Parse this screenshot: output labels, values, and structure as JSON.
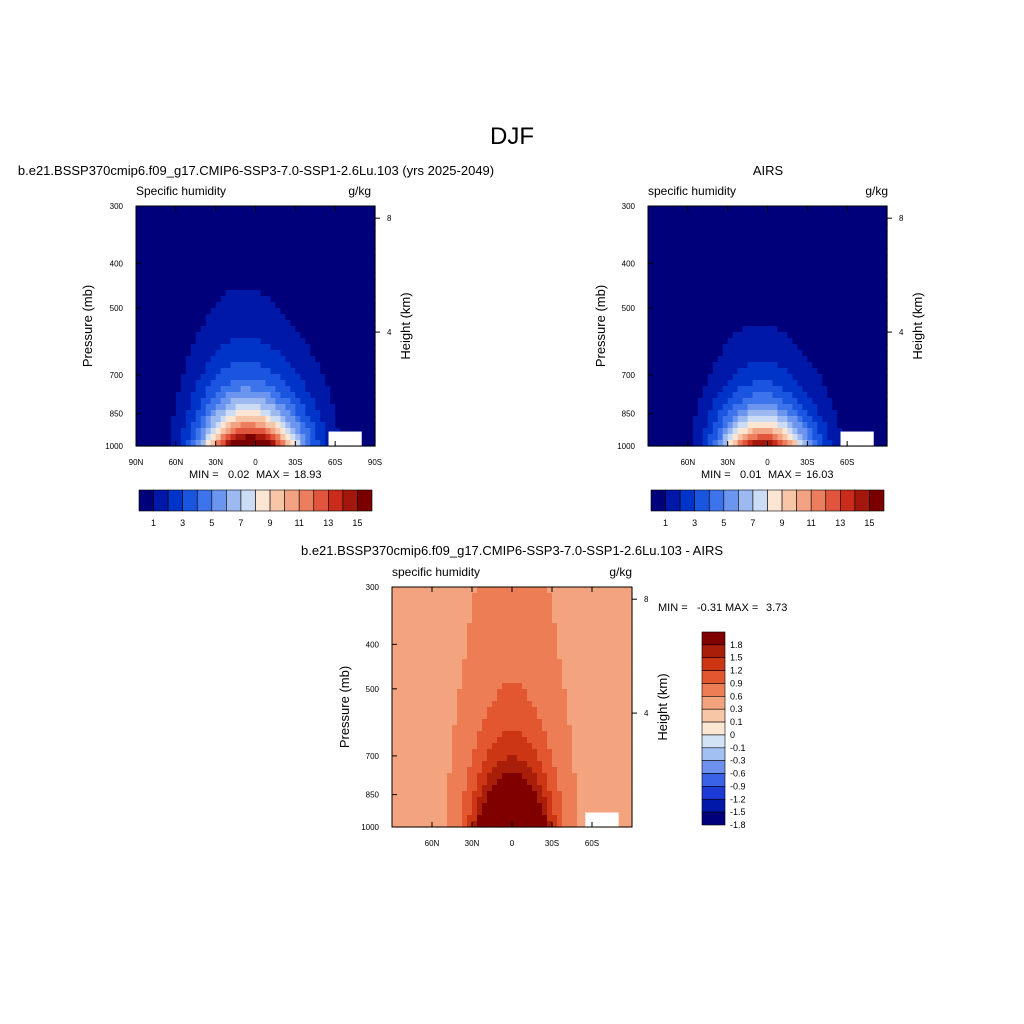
{
  "figure": {
    "title": "DJF"
  },
  "colors": {
    "abs_scale": [
      "#00007a",
      "#0018a8",
      "#0034c8",
      "#1a55e0",
      "#3d74eb",
      "#6b95ef",
      "#9cb9f2",
      "#cddcf5",
      "#fbe6d4",
      "#f7c6a9",
      "#f3a383",
      "#ec7d5f",
      "#e0553b",
      "#c92c1b",
      "#a3170d",
      "#7a0000"
    ],
    "diff_scale": [
      "#00007a",
      "#0018a8",
      "#1b3ad6",
      "#3a62e6",
      "#6d8fee",
      "#a3c0f2",
      "#d3e3f6",
      "#fbe6d4",
      "#f7c6a6",
      "#f3a37d",
      "#ec7d55",
      "#e2572f",
      "#cc3614",
      "#a81e08",
      "#800000"
    ]
  },
  "chart_data": [
    {
      "type": "heatmap",
      "id": "model",
      "title": "b.e21.BSSP370cmip6.f09_g17.CMIP6-SSP3-7.0-SSP1-2.6Lu.103 (yrs 2025-2049)",
      "left_label": "Specific humidity",
      "right_label": "g/kg",
      "ylabel": "Pressure (mb)",
      "ylabel_right": "Height (km)",
      "x_ticks": [
        "90N",
        "60N",
        "30N",
        "0",
        "30S",
        "60S",
        "90S"
      ],
      "x_tick_values": [
        90,
        60,
        30,
        0,
        -30,
        -60,
        -90
      ],
      "xlim": [
        90,
        -90
      ],
      "y_ticks": [
        "300",
        "400",
        "500",
        "700",
        "850",
        "1000"
      ],
      "y_tick_values": [
        300,
        400,
        500,
        700,
        850,
        1000
      ],
      "ylim": [
        300,
        1000
      ],
      "height_ticks": [
        "8",
        "4"
      ],
      "height_tick_values": [
        8,
        4
      ],
      "stats": {
        "min_label": "MIN =",
        "min": "0.02",
        "max_label": "MAX =",
        "max": "18.93"
      },
      "colorbar": {
        "labels": [
          "1",
          "3",
          "5",
          "7",
          "9",
          "11",
          "13",
          "15"
        ],
        "levels": 16
      },
      "field": {
        "amp": 18.9,
        "center_lat": 0,
        "lat_width": 26,
        "decay_mb": 185,
        "asym": 0.15
      }
    },
    {
      "type": "heatmap",
      "id": "obs",
      "title": "AIRS",
      "left_label": "specific humidity",
      "right_label": "g/kg",
      "ylabel": "Pressure (mb)",
      "ylabel_right": "Height (km)",
      "x_ticks": [
        "60N",
        "30N",
        "0",
        "30S",
        "60S"
      ],
      "x_tick_values": [
        60,
        30,
        0,
        -30,
        -60
      ],
      "xlim": [
        90,
        -90
      ],
      "y_ticks": [
        "300",
        "400",
        "500",
        "700",
        "850",
        "1000"
      ],
      "y_tick_values": [
        300,
        400,
        500,
        700,
        850,
        1000
      ],
      "ylim": [
        300,
        1000
      ],
      "height_ticks": [
        "8",
        "4"
      ],
      "height_tick_values": [
        8,
        4
      ],
      "stats": {
        "min_label": "MIN =",
        "min": "0.01",
        "max_label": "MAX =",
        "max": "16.03"
      },
      "colorbar": {
        "labels": [
          "1",
          "3",
          "5",
          "7",
          "9",
          "11",
          "13",
          "15"
        ],
        "levels": 16
      },
      "field": {
        "amp": 16.0,
        "center_lat": 0,
        "lat_width": 24,
        "decay_mb": 165,
        "asym": 0.12
      }
    },
    {
      "type": "heatmap",
      "id": "diff",
      "title": "b.e21.BSSP370cmip6.f09_g17.CMIP6-SSP3-7.0-SSP1-2.6Lu.103 - AIRS",
      "left_label": "specific humidity",
      "right_label": "g/kg",
      "ylabel": "Pressure (mb)",
      "ylabel_right": "Height (km)",
      "x_ticks": [
        "60N",
        "30N",
        "0",
        "30S",
        "60S"
      ],
      "x_tick_values": [
        60,
        30,
        0,
        -30,
        -60
      ],
      "xlim": [
        90,
        -90
      ],
      "y_ticks": [
        "300",
        "400",
        "500",
        "700",
        "850",
        "1000"
      ],
      "y_tick_values": [
        300,
        400,
        500,
        700,
        850,
        1000
      ],
      "ylim": [
        300,
        1000
      ],
      "height_ticks": [
        "8",
        "4"
      ],
      "height_tick_values": [
        8,
        4
      ],
      "stats": {
        "min_label": "MIN =",
        "min": "-0.31",
        "max_label": "MAX =",
        "max": "3.73"
      },
      "colorbar": {
        "labels": [
          "1.8",
          "1.5",
          "1.2",
          "0.9",
          "0.6",
          "0.3",
          "0.1",
          "0",
          "-0.1",
          "-0.3",
          "-0.6",
          "-0.9",
          "-1.2",
          "-1.5",
          "-1.8"
        ],
        "levels": [
          -1.8,
          -1.5,
          -1.2,
          -0.9,
          -0.6,
          -0.3,
          -0.1,
          0,
          0.1,
          0.3,
          0.6,
          0.9,
          1.2,
          1.5,
          1.8
        ]
      },
      "field": {
        "amp": 3.7,
        "center_lat": 0,
        "lat_width": 18,
        "decay_mb": 220,
        "asym": 0.0
      }
    }
  ]
}
